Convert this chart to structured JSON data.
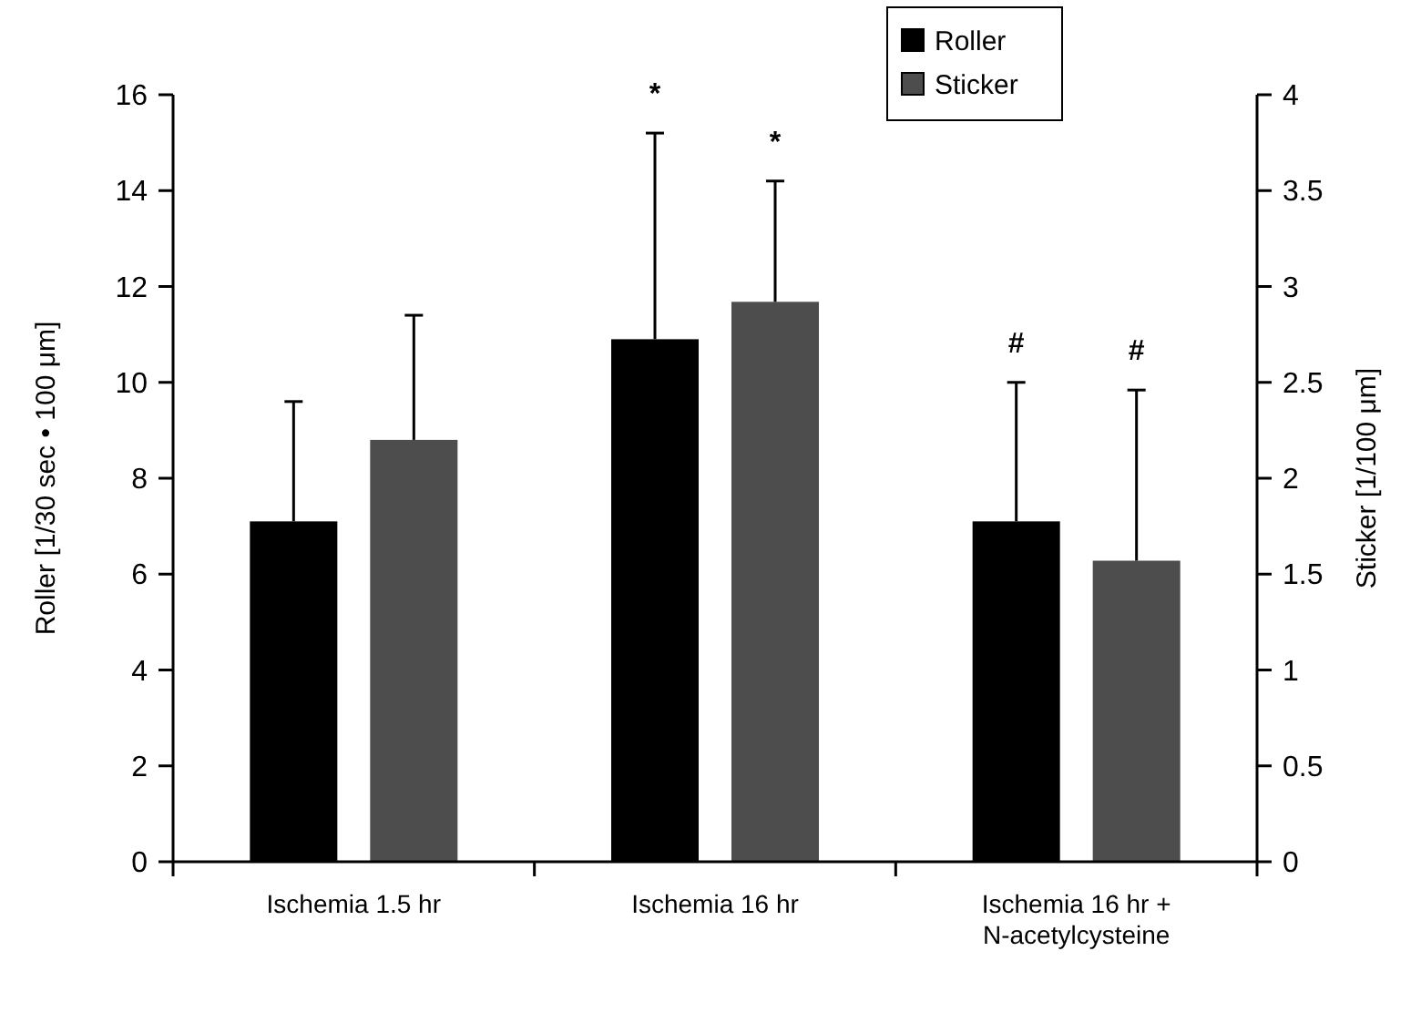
{
  "chart_data": {
    "type": "bar",
    "categories": [
      "Ischemia 1.5 hr",
      "Ischemia 16 hr",
      "Ischemia 16 hr + N-acetylcysteine"
    ],
    "ylabel": "Roller [1/30 sec • 100 μm]",
    "y2label": "Sticker [1/100 μm]",
    "ylim": [
      0,
      16
    ],
    "yticks": [
      0,
      2,
      4,
      6,
      8,
      10,
      12,
      14,
      16
    ],
    "y2lim": [
      0,
      4
    ],
    "y2ticks": [
      0,
      0.5,
      1,
      1.5,
      2,
      2.5,
      3,
      3.5,
      4
    ],
    "series": [
      {
        "name": "Roller",
        "color": "#000000",
        "values": [
          7.1,
          10.9,
          7.1
        ],
        "errors": [
          [
            7.1,
            9.6
          ],
          [
            10.9,
            15.2
          ],
          [
            7.1,
            10.0
          ]
        ]
      },
      {
        "name": "Sticker",
        "color": "#4d4d4d",
        "axis": "y2",
        "values": [
          2.2,
          2.92,
          1.57
        ],
        "errors": [
          [
            2.2,
            2.85
          ],
          [
            2.92,
            3.55
          ],
          [
            1.57,
            2.46
          ]
        ]
      }
    ],
    "annotations": [
      "*",
      "*",
      "#",
      "#"
    ],
    "legend": "top right",
    "grid": false
  }
}
